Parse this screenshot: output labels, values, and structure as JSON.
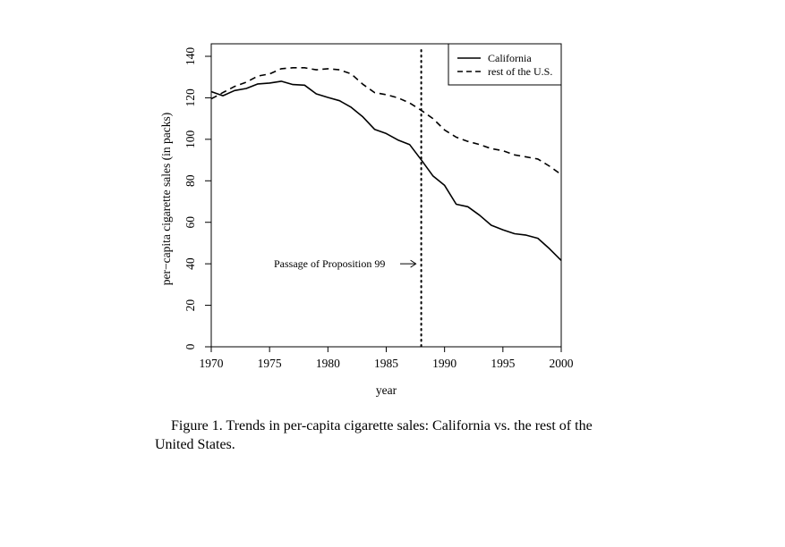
{
  "caption": "Figure 1.  Trends in per-capita cigarette sales: California vs. the rest of the United States.",
  "chart_data": {
    "type": "line",
    "xlabel": "year",
    "ylabel": "per−capita cigarette sales (in packs)",
    "xlim": [
      1970,
      2000
    ],
    "ylim": [
      0,
      140
    ],
    "xticks": [
      1970,
      1975,
      1980,
      1985,
      1990,
      1995,
      2000
    ],
    "yticks": [
      0,
      20,
      40,
      60,
      80,
      100,
      120,
      140
    ],
    "grid": false,
    "legend_position": "top-right",
    "x": [
      1970,
      1971,
      1972,
      1973,
      1974,
      1975,
      1976,
      1977,
      1978,
      1979,
      1980,
      1981,
      1982,
      1983,
      1984,
      1985,
      1986,
      1987,
      1988,
      1989,
      1990,
      1991,
      1992,
      1993,
      1994,
      1995,
      1996,
      1997,
      1998,
      1999,
      2000
    ],
    "series": [
      {
        "name": "California",
        "style": "solid",
        "values": [
          123.0,
          121.0,
          123.5,
          124.5,
          126.7,
          127.1,
          128.0,
          126.4,
          126.1,
          121.9,
          120.2,
          118.6,
          115.4,
          110.8,
          104.8,
          102.8,
          99.7,
          97.5,
          90.1,
          82.4,
          77.8,
          68.7,
          67.5,
          63.4,
          58.6,
          56.4,
          54.5,
          53.8,
          52.3,
          47.2,
          41.6
        ]
      },
      {
        "name": "rest of the U.S.",
        "style": "dashed",
        "values": [
          119.5,
          122.5,
          125.5,
          127.5,
          130.5,
          131.5,
          134.0,
          134.5,
          134.5,
          133.5,
          134.0,
          133.5,
          131.5,
          126.5,
          122.5,
          121.5,
          120.0,
          117.5,
          114.0,
          110.0,
          104.5,
          101.0,
          99.0,
          97.5,
          95.5,
          94.5,
          92.5,
          91.5,
          90.5,
          87.0,
          83.0
        ]
      }
    ],
    "vline": {
      "x": 1988,
      "style": "dotted"
    },
    "annotation": {
      "text": "Passage of Proposition 99",
      "x": 1988,
      "y": 40
    }
  }
}
